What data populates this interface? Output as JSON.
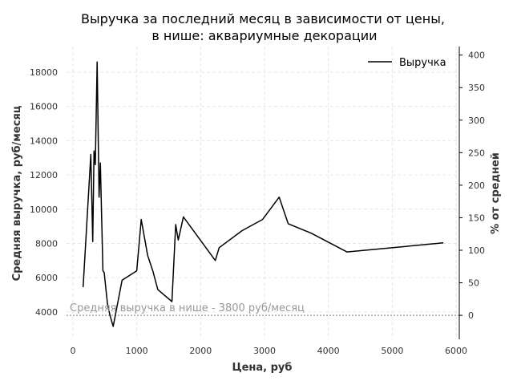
{
  "chart_data": {
    "type": "line",
    "title_line1": "Выручка за последний месяц в зависимости от цены,",
    "title_line2": "в нише: аквариумные декорации",
    "xlabel": "Цена, руб",
    "ylabel": "Средняя выручка, руб/месяц",
    "y2label": "% от средней",
    "xlim": [
      -100,
      6050
    ],
    "ylim": [
      2400,
      19500
    ],
    "x_ticks": [
      0,
      1000,
      2000,
      3000,
      4000,
      5000,
      6000
    ],
    "y_ticks": [
      4000,
      6000,
      8000,
      10000,
      12000,
      14000,
      16000,
      18000
    ],
    "y2_ticks": [
      0,
      50,
      100,
      150,
      200,
      250,
      300,
      350,
      400
    ],
    "y2_reference": 3800,
    "grid": true,
    "legend_position": "top-right",
    "series": [
      {
        "name": "Выручка",
        "color": "#000000",
        "x": [
          160,
          280,
          310,
          330,
          350,
          380,
          410,
          430,
          470,
          490,
          540,
          580,
          630,
          770,
          1000,
          1070,
          1170,
          1250,
          1330,
          1550,
          1610,
          1650,
          1730,
          2230,
          2290,
          2650,
          2970,
          3230,
          3370,
          3730,
          4290,
          5800
        ],
        "y": [
          5450,
          13200,
          8100,
          13400,
          12600,
          18600,
          10700,
          12700,
          6400,
          6300,
          4500,
          3800,
          3150,
          5850,
          6400,
          9400,
          7300,
          6400,
          5300,
          4600,
          9100,
          8200,
          9550,
          7000,
          7750,
          8750,
          9400,
          10700,
          9150,
          8600,
          7500,
          8030
        ]
      }
    ],
    "reference_line": {
      "y": 3800,
      "label": "Средняя выручка в нише - 3800 руб/месяц",
      "color": "#999999"
    }
  }
}
